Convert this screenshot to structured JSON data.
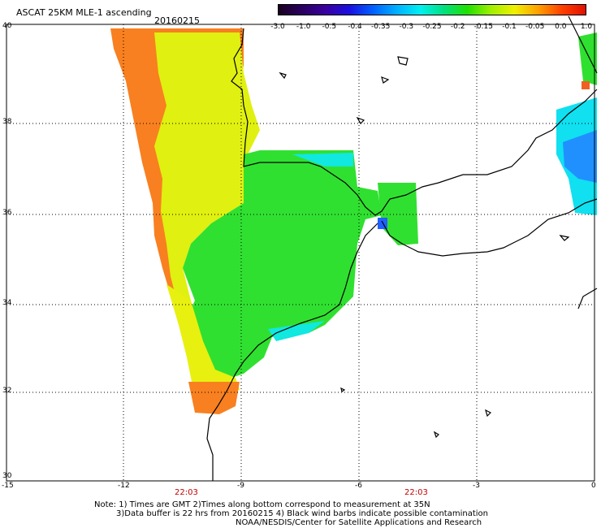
{
  "title": "ASCAT 25KM MLE-1 ascending",
  "date": "20160215",
  "colorbar": {
    "ticks": [
      "-3.0",
      "-1.0",
      "-0.5",
      "-0.4",
      "-0.35",
      "-0.3",
      "-0.25",
      "-0.2",
      "-0.15",
      "-0.1",
      "-0.05",
      "0.0",
      "1.0"
    ],
    "colors": [
      "#1a0020",
      "#2a0060",
      "#3a00a0",
      "#1a10e0",
      "#0060ff",
      "#00b0ff",
      "#00f0f0",
      "#00e080",
      "#20e000",
      "#a0f000",
      "#f0f000",
      "#ffa000",
      "#ff4000",
      "#e01000"
    ]
  },
  "axes": {
    "x_ticks": [
      "-15",
      "-12",
      "-9",
      "-6",
      "-3",
      "0"
    ],
    "y_ticks": [
      "40",
      "38",
      "36",
      "34",
      "32",
      "30"
    ],
    "lon_range": [
      -15,
      0
    ],
    "lat_range": [
      30,
      40
    ]
  },
  "time_labels": [
    "22:03",
    "22:03"
  ],
  "notes": [
    "Note: 1) Times are GMT 2)Times along bottom correspond to measurement at 35N",
    "3)Data buffer is 22 hrs from 20160215 4) Black wind barbs indicate possible contamination",
    "NOAA/NESDIS/Center for Satellite Applications and Research"
  ],
  "colors": {
    "land_green": "#30e030",
    "orange": "#f88020",
    "yellow": "#f0f000",
    "cyan": "#00e8f0",
    "blue": "#2080ff"
  }
}
